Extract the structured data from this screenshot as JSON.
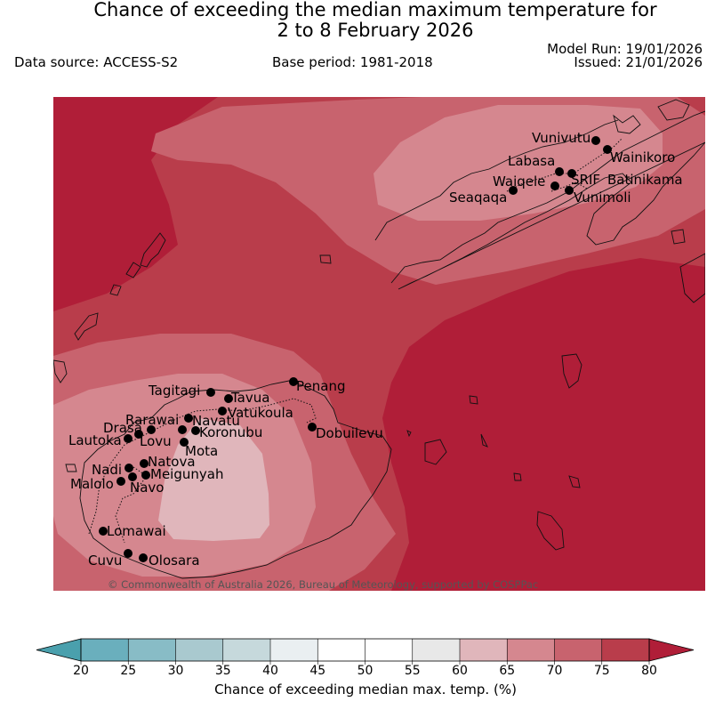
{
  "title_line1": "Chance of exceeding the median maximum temperature for",
  "title_line2": "2 to 8 February 2026",
  "data_source": "Data source: ACCESS-S2",
  "base_period": "Base period: 1981-2018",
  "model_run": "Model Run: 19/01/2026",
  "issued": "Issued: 21/01/2026",
  "copyright": "© Commonwealth of Australia 2026, Bureau of Meteorology, supported by COSPPac",
  "colorbar": {
    "label": "Chance of exceeding median max. temp. (%)",
    "ticks": [
      "20",
      "25",
      "30",
      "35",
      "40",
      "45",
      "50",
      "55",
      "60",
      "65",
      "70",
      "75",
      "80"
    ],
    "colors": [
      "#6aafbd",
      "#88bcc6",
      "#a9c9cf",
      "#c6d9dc",
      "#eaeff1",
      "#ffffff",
      "#ffffff",
      "#e8e8e8",
      "#e0b6bb",
      "#d5878f",
      "#c8636e",
      "#b93d4b"
    ],
    "under_color": "#4aa0ad",
    "over_color": "#b01e38"
  },
  "places": [
    {
      "name": "Vunivutu"
    },
    {
      "name": "Wainikoro"
    },
    {
      "name": "Labasa"
    },
    {
      "name": "SRIF"
    },
    {
      "name": "Batinikama"
    },
    {
      "name": "Waiqele"
    },
    {
      "name": "Seaqaqa"
    },
    {
      "name": "Vunimoli"
    },
    {
      "name": "Tagitagi"
    },
    {
      "name": "Penang"
    },
    {
      "name": "Tavua"
    },
    {
      "name": "Rarawai"
    },
    {
      "name": "Navatu"
    },
    {
      "name": "Vatukoula"
    },
    {
      "name": "Drasa"
    },
    {
      "name": "Koronubu"
    },
    {
      "name": "Lautoka"
    },
    {
      "name": "Lovu"
    },
    {
      "name": "Dobuilevu"
    },
    {
      "name": "Mota"
    },
    {
      "name": "Natova"
    },
    {
      "name": "Nadi"
    },
    {
      "name": "Meigunyah"
    },
    {
      "name": "Malolo"
    },
    {
      "name": "Navo"
    },
    {
      "name": "Lomawai"
    },
    {
      "name": "Cuvu"
    },
    {
      "name": "Olosara"
    }
  ]
}
